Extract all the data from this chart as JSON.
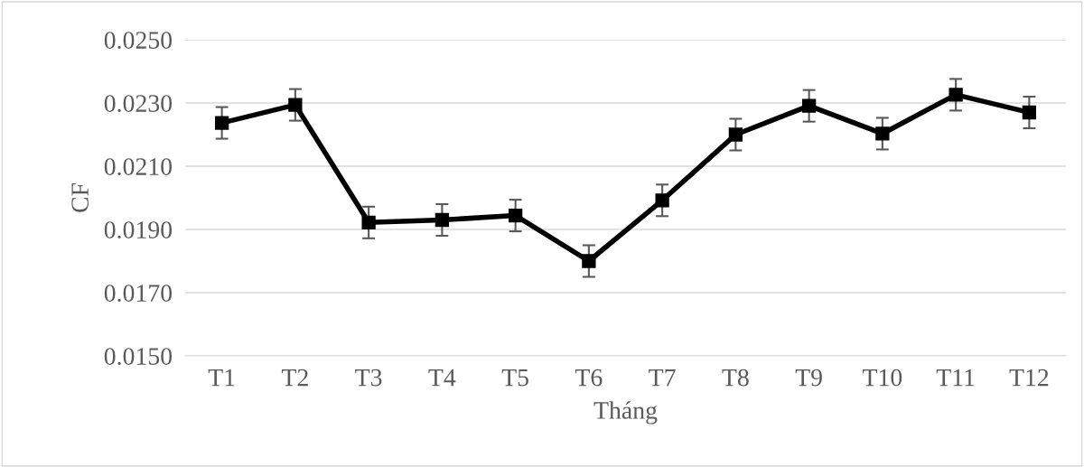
{
  "chart_data": {
    "type": "line",
    "xlabel": "Tháng",
    "ylabel": "CF",
    "categories": [
      "T1",
      "T2",
      "T3",
      "T4",
      "T5",
      "T6",
      "T7",
      "T8",
      "T9",
      "T10",
      "T11",
      "T12"
    ],
    "series": [
      {
        "color": "#000000",
        "values": [
          0.02237,
          0.02294,
          0.01922,
          0.0193,
          0.01944,
          0.018,
          0.01992,
          0.022,
          0.02291,
          0.02203,
          0.02326,
          0.0227
        ],
        "errors": [
          0.0005,
          0.0005,
          0.0005,
          0.0005,
          0.0005,
          0.0005,
          0.0005,
          0.0005,
          0.0005,
          0.0005,
          0.0005,
          0.0005
        ]
      }
    ],
    "ylim": [
      0.015,
      0.025
    ],
    "yticks": [
      {
        "value": 0.015,
        "label": "0.0150"
      },
      {
        "value": 0.017,
        "label": "0.0170"
      },
      {
        "value": 0.019,
        "label": "0.0190"
      },
      {
        "value": 0.021,
        "label": "0.0210"
      },
      {
        "value": 0.023,
        "label": "0.0230"
      },
      {
        "value": 0.025,
        "label": "0.0250"
      }
    ],
    "grid": "y",
    "marker": "square",
    "line_style": "solid"
  }
}
